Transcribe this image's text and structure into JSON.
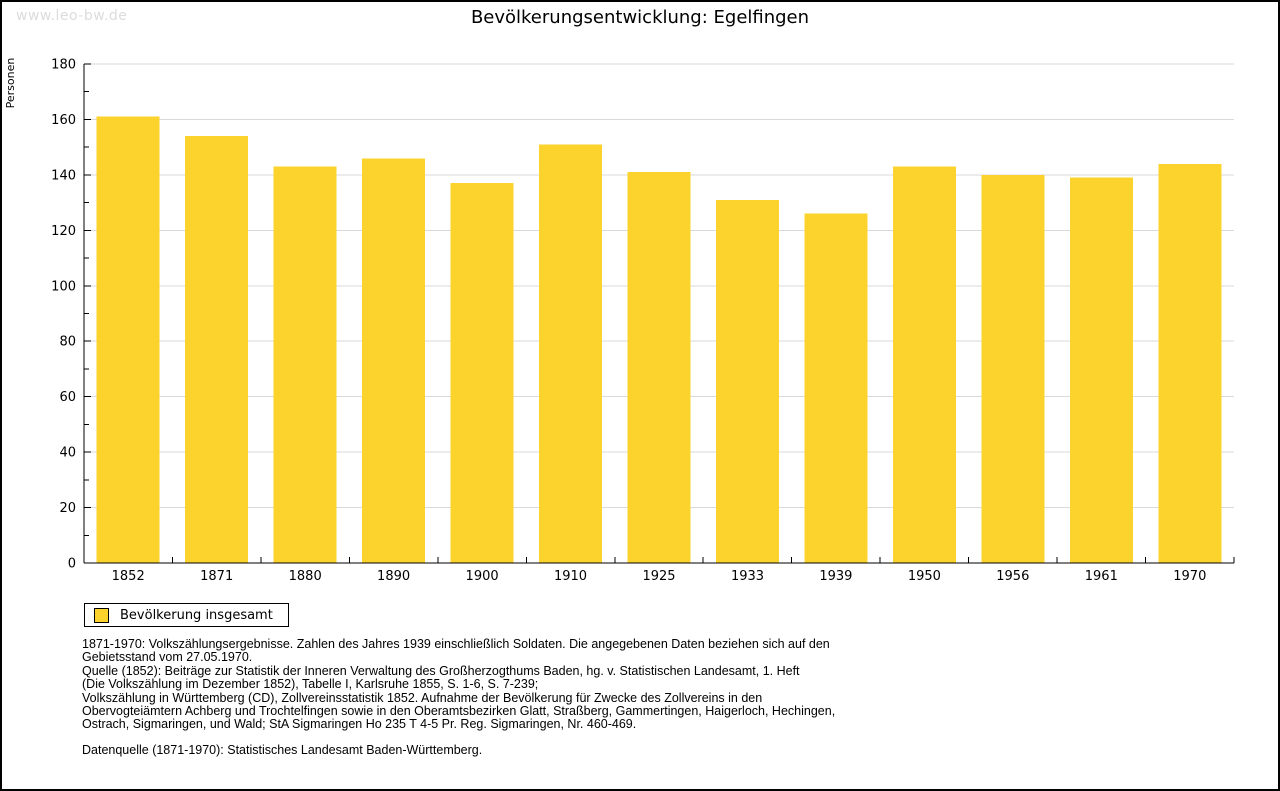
{
  "page": {
    "watermark": "www.leo-bw.de",
    "title": "Bevölkerungsentwicklung: Egelfingen"
  },
  "legend": {
    "label": "Bevölkerung insgesamt"
  },
  "footnotes": [
    "1871-1970: Volkszählungsergebnisse. Zahlen des Jahres 1939 einschließlich Soldaten. Die angegebenen Daten beziehen sich auf den",
    "Gebietsstand vom 27.05.1970.",
    "Quelle (1852): Beiträge zur Statistik der Inneren Verwaltung des Großherzogthums Baden, hg. v. Statistischen Landesamt, 1. Heft",
    "(Die Volkszählung im Dezember 1852), Tabelle I, Karlsruhe 1855, S. 1-6, S. 7-239;",
    "Volkszählung in Württemberg (CD), Zollvereinsstatistik 1852. Aufnahme der Bevölkerung für Zwecke des Zollvereins in den",
    "Obervogteiämtern Achberg und Trochtelfingen sowie in den Oberamtsbezirken Glatt, Straßberg, Gammertingen, Haigerloch, Hechingen,",
    "Ostrach, Sigmaringen, und Wald; StA Sigmaringen Ho 235 T 4-5 Pr. Reg. Sigmaringen, Nr. 460-469."
  ],
  "datasource": "Datenquelle (1871-1970): Statistisches Landesamt Baden-Württemberg.",
  "colors": {
    "bar": "#FCD32C",
    "grid": "#D9D9D9",
    "axis": "#000000",
    "text": "#000000",
    "watermark": "#DCDCDC"
  },
  "chart_data": {
    "type": "bar",
    "title": "Bevölkerungsentwicklung: Egelfingen",
    "categories": [
      "1852",
      "1871",
      "1880",
      "1890",
      "1900",
      "1910",
      "1925",
      "1933",
      "1939",
      "1950",
      "1956",
      "1961",
      "1970"
    ],
    "values": [
      161,
      154,
      143,
      146,
      137,
      151,
      141,
      131,
      126,
      143,
      140,
      139,
      144
    ],
    "series_name": "Bevölkerung insgesamt",
    "xlabel": "",
    "ylabel": "Personen",
    "ylim": [
      0,
      180
    ],
    "ytick_step": 20,
    "ytick_minor_step": 10,
    "grid": true,
    "legend_position": "bottom-left"
  }
}
